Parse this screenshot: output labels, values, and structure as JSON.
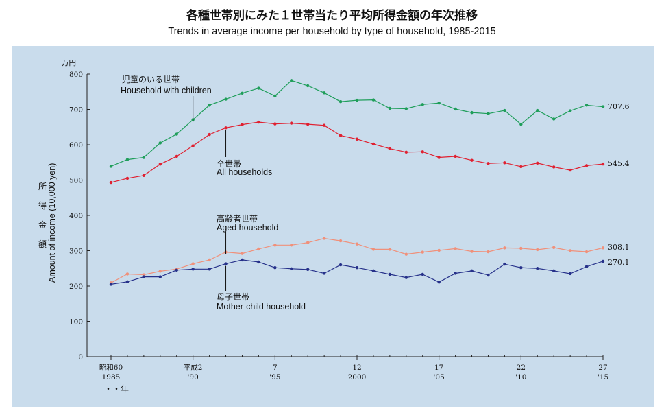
{
  "header": {
    "title_jp": "各種世帯別にみた１世帯当たり平均所得金額の年次推移",
    "title_en": "Trends in average income per household by type of household, 1985-2015"
  },
  "axes": {
    "y_unit": "万円",
    "y_label_jp": "所得金額",
    "y_label_en": "Amount of income (10,000 yen)",
    "y_ticks": [
      "0",
      "100",
      "200",
      "300",
      "400",
      "500",
      "600",
      "700",
      "800"
    ],
    "x_era_ticks": [
      "昭和60",
      "平成2",
      "7",
      "12",
      "17",
      "22",
      "27"
    ],
    "x_year_ticks": [
      "1985",
      "'90",
      "'95",
      "2000",
      "'05",
      "'10",
      "'15"
    ],
    "x_note": "・・年"
  },
  "colors": {
    "with_children": "#1f9e5a",
    "all": "#e02030",
    "aged": "#f0907a",
    "mother_child": "#26318a",
    "panel": "#c9dcec"
  },
  "chart_data": {
    "type": "line",
    "x": [
      1985,
      1986,
      1987,
      1988,
      1989,
      1990,
      1991,
      1992,
      1993,
      1994,
      1995,
      1996,
      1997,
      1998,
      1999,
      2000,
      2001,
      2002,
      2003,
      2004,
      2005,
      2006,
      2007,
      2008,
      2009,
      2010,
      2011,
      2012,
      2013,
      2014,
      2015
    ],
    "ylim": [
      0,
      800
    ],
    "series": [
      {
        "key": "with_children",
        "name_jp": "児童のいる世帯",
        "name": "Household with children",
        "end_label": "707.6",
        "values": [
          539,
          558,
          564,
          605,
          630,
          671,
          712,
          729,
          746,
          760,
          738,
          782,
          767,
          747,
          722,
          726,
          727,
          703,
          702,
          714,
          718,
          701,
          691,
          688,
          697,
          658,
          697,
          673,
          696,
          712,
          707.6
        ]
      },
      {
        "key": "all",
        "name_jp": "全世帯",
        "name": "All households",
        "end_label": "545.4",
        "values": [
          493,
          505,
          513,
          545,
          567,
          597,
          629,
          648,
          657,
          664,
          659,
          661,
          658,
          655,
          626,
          616,
          602,
          589,
          579,
          580,
          564,
          567,
          556,
          547,
          549,
          538,
          548,
          537,
          528,
          541,
          545.4
        ]
      },
      {
        "key": "aged",
        "name_jp": "高齢者世帯",
        "name": "Aged household",
        "end_label": "308.1",
        "values": [
          209,
          234,
          232,
          242,
          248,
          263,
          274,
          296,
          292,
          305,
          316,
          316,
          323,
          335,
          328,
          319,
          304,
          304,
          290,
          296,
          301,
          306,
          298,
          297,
          308,
          307,
          303,
          309,
          300,
          297,
          308.1
        ]
      },
      {
        "key": "mother_child",
        "name_jp": "母子世帯",
        "name": "Mother-child household",
        "end_label": "270.1",
        "values": [
          205,
          212,
          226,
          226,
          245,
          248,
          248,
          263,
          274,
          268,
          252,
          249,
          247,
          236,
          260,
          252,
          243,
          233,
          224,
          233,
          211,
          236,
          243,
          231,
          262,
          252,
          250,
          243,
          235,
          255,
          270.1
        ]
      }
    ]
  }
}
